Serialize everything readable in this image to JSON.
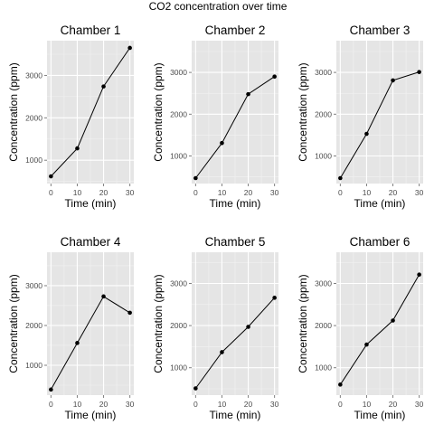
{
  "title": "CO2 concentration over time",
  "colors": {
    "panel_bg": "#e5e5e5",
    "grid_major": "#ffffff",
    "grid_minor": "#f2f2f2",
    "line": "#000000",
    "point": "#000000",
    "tick_text": "#4d4d4d",
    "axis_title_text": "#000000"
  },
  "chart_data": [
    {
      "type": "line",
      "title": "Chamber  1",
      "xlabel": "Time (min)",
      "ylabel": "Concentration (ppm)",
      "x": [
        0,
        10,
        20,
        30
      ],
      "values": [
        620,
        1280,
        2740,
        3650
      ],
      "xlim": [
        -1.5,
        31.5
      ],
      "ylim": [
        450,
        3820
      ],
      "xticks": [
        0,
        10,
        20,
        30
      ],
      "yticks": [
        1000,
        2000,
        3000
      ]
    },
    {
      "type": "line",
      "title": "Chamber  2",
      "xlabel": "Time (min)",
      "ylabel": "Concentration (ppm)",
      "x": [
        0,
        10,
        20,
        30
      ],
      "values": [
        470,
        1310,
        2480,
        2900
      ],
      "xlim": [
        -1.5,
        31.5
      ],
      "ylim": [
        340,
        3760
      ],
      "xticks": [
        0,
        10,
        20,
        30
      ],
      "yticks": [
        1000,
        2000,
        3000
      ]
    },
    {
      "type": "line",
      "title": "Chamber  3",
      "xlabel": "Time (min)",
      "ylabel": "Concentration (ppm)",
      "x": [
        0,
        10,
        20,
        30
      ],
      "values": [
        470,
        1530,
        2810,
        3010
      ],
      "xlim": [
        -1.5,
        31.5
      ],
      "ylim": [
        340,
        3760
      ],
      "xticks": [
        0,
        10,
        20,
        30
      ],
      "yticks": [
        1000,
        2000,
        3000
      ]
    },
    {
      "type": "line",
      "title": "Chamber  4",
      "xlabel": "Time (min)",
      "ylabel": "Concentration (ppm)",
      "x": [
        0,
        10,
        20,
        30
      ],
      "values": [
        390,
        1560,
        2730,
        2320
      ],
      "xlim": [
        -1.5,
        31.5
      ],
      "ylim": [
        250,
        3840
      ],
      "xticks": [
        0,
        10,
        20,
        30
      ],
      "yticks": [
        1000,
        2000,
        3000
      ]
    },
    {
      "type": "line",
      "title": "Chamber  5",
      "xlabel": "Time (min)",
      "ylabel": "Concentration (ppm)",
      "x": [
        0,
        10,
        20,
        30
      ],
      "values": [
        510,
        1370,
        1970,
        2660
      ],
      "xlim": [
        -1.5,
        31.5
      ],
      "ylim": [
        350,
        3740
      ],
      "xticks": [
        0,
        10,
        20,
        30
      ],
      "yticks": [
        1000,
        2000,
        3000
      ]
    },
    {
      "type": "line",
      "title": "Chamber  6",
      "xlabel": "Time (min)",
      "ylabel": "Concentration (ppm)",
      "x": [
        0,
        10,
        20,
        30
      ],
      "values": [
        600,
        1550,
        2120,
        3210
      ],
      "xlim": [
        -1.5,
        31.5
      ],
      "ylim": [
        350,
        3740
      ],
      "xticks": [
        0,
        10,
        20,
        30
      ],
      "yticks": [
        1000,
        2000,
        3000
      ]
    }
  ]
}
